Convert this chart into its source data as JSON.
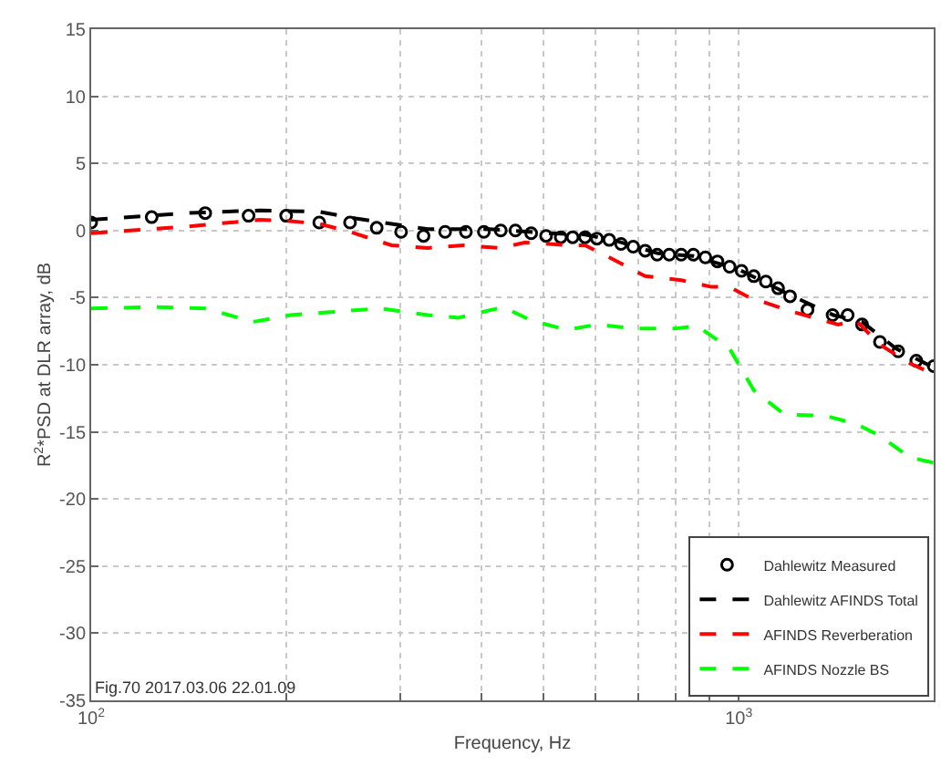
{
  "chart_data": {
    "type": "line",
    "xlabel": "Frequency, Hz",
    "ylabel": "R$^{2}$*PSD at DLR array, dB",
    "log": "x",
    "grid": true,
    "legend": "bottom right",
    "xlim": [
      100,
      2000
    ],
    "ylim": [
      -35,
      15
    ],
    "xticks": [
      {
        "value": 100,
        "label": "10$^{2}$"
      },
      {
        "value": 200,
        "label": null
      },
      {
        "value": 300,
        "label": null
      },
      {
        "value": 400,
        "label": null
      },
      {
        "value": 500,
        "label": null
      },
      {
        "value": 600,
        "label": null
      },
      {
        "value": 700,
        "label": null
      },
      {
        "value": 800,
        "label": null
      },
      {
        "value": 900,
        "label": null
      },
      {
        "value": 1000,
        "label": "10$^{3}$"
      }
    ],
    "yticks": [
      -35,
      -30,
      -25,
      -20,
      -15,
      -10,
      -5,
      0,
      5,
      10,
      15
    ],
    "annotations": [
      "Fig.70 2017.03.06 22.01.09"
    ],
    "series": [
      {
        "name": "Dahlewitz Measured",
        "type": "scatter",
        "marker": "circle",
        "color": "#000000",
        "x": [
          100,
          124,
          150,
          175,
          200,
          225,
          251,
          276,
          301,
          326,
          352,
          379,
          404,
          429,
          452,
          478,
          504,
          531,
          554,
          579,
          604,
          631,
          658,
          687,
          717,
          748,
          781,
          815,
          851,
          888,
          927,
          968,
          1010,
          1055,
          1101,
          1150,
          1200,
          1277,
          1396,
          1473,
          1550,
          1652,
          1763,
          1880,
          2000
        ],
        "values": [
          0.6,
          1.0,
          1.3,
          1.1,
          1.1,
          0.6,
          0.6,
          0.2,
          -0.1,
          -0.4,
          -0.1,
          -0.1,
          -0.1,
          0,
          0,
          -0.2,
          -0.4,
          -0.5,
          -0.5,
          -0.5,
          -0.6,
          -0.7,
          -1.0,
          -1.2,
          -1.5,
          -1.8,
          -1.8,
          -1.8,
          -1.8,
          -2.0,
          -2.3,
          -2.7,
          -3.0,
          -3.4,
          -3.8,
          -4.3,
          -4.9,
          -5.9,
          -6.3,
          -6.3,
          -7.0,
          -8.3,
          -9.0,
          -9.7,
          -10.1
        ]
      },
      {
        "name": "Dahlewitz AFINDS Total",
        "line_style": "dashed",
        "color": "#000000",
        "x": [
          100,
          141,
          182,
          225,
          256,
          291,
          331,
          412,
          510,
          579,
          650,
          750,
          850,
          1000,
          1200,
          1400,
          1550,
          1750,
          2000
        ],
        "values": [
          0.8,
          1.3,
          1.5,
          1.4,
          0.9,
          0.5,
          0.1,
          0.1,
          -0.2,
          -0.3,
          -0.8,
          -1.7,
          -1.9,
          -2.9,
          -4.8,
          -6.3,
          -6.8,
          -8.8,
          -10.2
        ]
      },
      {
        "name": "AFINDS Reverberation",
        "line_style": "dashed",
        "color": "#ff0000",
        "x": [
          100,
          141,
          182,
          203,
          225,
          251,
          291,
          331,
          376,
          428,
          467,
          553,
          579,
          631,
          717,
          815,
          907,
          968,
          1030,
          1200,
          1424,
          1517,
          1652,
          1838,
          2000
        ],
        "values": [
          -0.2,
          0.3,
          0.8,
          0.7,
          0.5,
          -0.1,
          -1.1,
          -1.3,
          -1.1,
          -1.3,
          -0.9,
          -1.1,
          -1.1,
          -2.0,
          -3.4,
          -3.7,
          -4.2,
          -4.2,
          -4.9,
          -6.0,
          -7.0,
          -6.7,
          -8.5,
          -9.9,
          -10.7
        ]
      },
      {
        "name": "AFINDS Nozzle BS",
        "line_style": "dashed",
        "color": "#00ff00",
        "x": [
          100,
          126,
          150,
          178,
          203,
          231,
          280,
          331,
          369,
          433,
          478,
          542,
          605,
          688,
          800,
          863,
          968,
          1055,
          1176,
          1360,
          1517,
          1652,
          1838,
          2000
        ],
        "values": [
          -5.8,
          -5.7,
          -5.8,
          -6.8,
          -6.3,
          -6.1,
          -5.8,
          -6.3,
          -6.5,
          -5.7,
          -6.7,
          -7.4,
          -7.0,
          -7.3,
          -7.3,
          -7.1,
          -8.8,
          -11.9,
          -13.7,
          -13.8,
          -14.4,
          -15.3,
          -16.9,
          -17.3
        ]
      }
    ]
  }
}
